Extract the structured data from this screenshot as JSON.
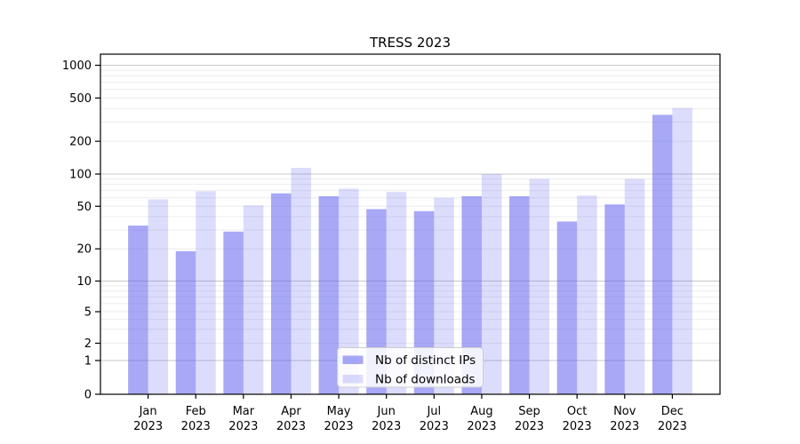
{
  "figure": {
    "background": "#ffffff"
  },
  "chart_data": {
    "type": "bar",
    "title": "TRESS 2023",
    "categories": [
      "Jan 2023",
      "Feb 2023",
      "Mar 2023",
      "Apr 2023",
      "May 2023",
      "Jun 2023",
      "Jul 2023",
      "Aug 2023",
      "Sep 2023",
      "Oct 2023",
      "Nov 2023",
      "Dec 2023"
    ],
    "x_tick_months": [
      "Jan",
      "Feb",
      "Mar",
      "Apr",
      "May",
      "Jun",
      "Jul",
      "Aug",
      "Sep",
      "Oct",
      "Nov",
      "Dec"
    ],
    "x_tick_year": "2023",
    "series": [
      {
        "name": "Nb of distinct IPs",
        "values": [
          33,
          19,
          29,
          66,
          62,
          47,
          45,
          62,
          62,
          36,
          52,
          350
        ]
      },
      {
        "name": "Nb of downloads",
        "values": [
          58,
          69,
          51,
          114,
          73,
          68,
          60,
          100,
          90,
          63,
          90,
          405
        ]
      }
    ],
    "yscale": "symlog",
    "yticks": [
      0,
      1,
      2,
      5,
      10,
      20,
      50,
      100,
      200,
      500,
      1000
    ],
    "ylim": [
      0,
      1270
    ],
    "grid": true,
    "legend": {
      "position": "lower center",
      "items": [
        "Nb of distinct IPs",
        "Nb of downloads"
      ]
    }
  },
  "colors": {
    "bar_base": "#5a5af0",
    "ips_alpha": 0.53,
    "downloads_alpha": 0.21,
    "ips_on_white": "#a7a7f7",
    "downloads_on_white": "#dcdcfb",
    "grid_minor": "#ececec",
    "grid_major": "#c8c8c8",
    "axis": "#000000",
    "legend_border": "#cccccc",
    "legend_bg": "#ffffff"
  }
}
